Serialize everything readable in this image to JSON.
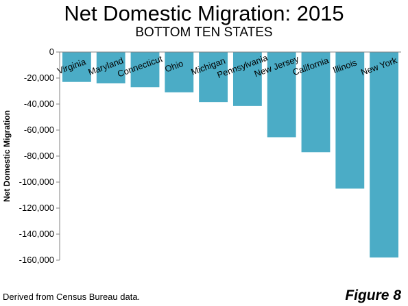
{
  "chart_data": {
    "type": "bar",
    "title": "Net Domestic Migration: 2015",
    "subtitle": "BOTTOM TEN STATES",
    "xlabel": "",
    "ylabel": "Net Domestic Migration",
    "categories": [
      "Virginia",
      "Maryland",
      "Connecticut",
      "Ohio",
      "Michigan",
      "Pennsylvania",
      "New Jersey",
      "California",
      "Illinois",
      "New York"
    ],
    "values": [
      -23000,
      -24000,
      -27000,
      -31000,
      -38500,
      -41500,
      -65500,
      -77000,
      -105000,
      -158000
    ],
    "ylim": [
      -160000,
      0
    ],
    "yticks": [
      0,
      -20000,
      -40000,
      -60000,
      -80000,
      -100000,
      -120000,
      -140000,
      -160000
    ],
    "ytick_labels": [
      "0",
      "-20,000",
      "-40,000",
      "-60,000",
      "-80,000",
      "-100,000",
      "-120,000",
      "-140,000",
      "-160,000"
    ],
    "bar_color": "#4bacc6",
    "grid": false,
    "legend": "none"
  },
  "footer": {
    "source": "Derived from Census Bureau data.",
    "figure": "Figure 8"
  }
}
